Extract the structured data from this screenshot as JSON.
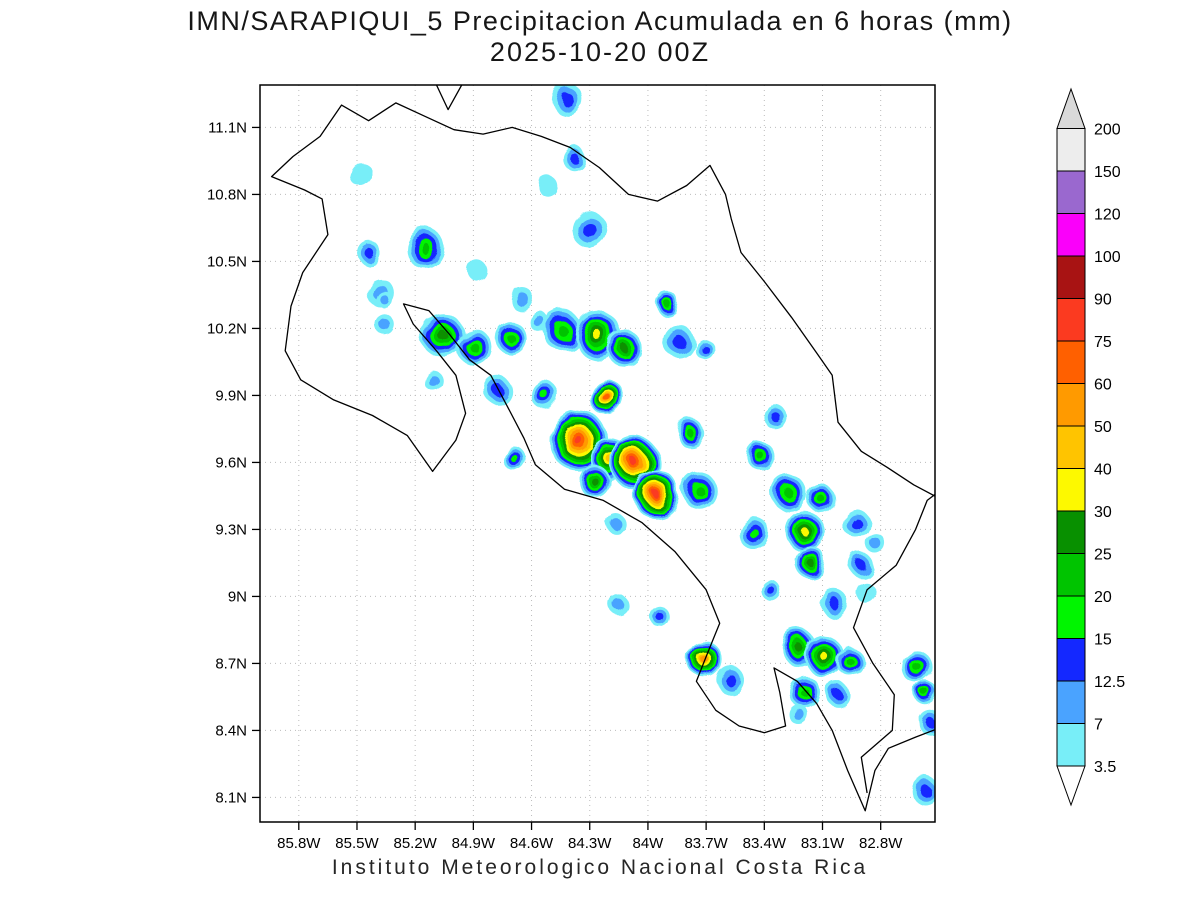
{
  "chart_data": {
    "type": "heatmap",
    "title": "IMN/SARAPIQUI_5 Precipitacion Acumulada en 6 horas (mm)",
    "subtitle": "2025-10-20 00Z",
    "footer": "Instituto Meteorologico Nacional Costa Rica",
    "units": "mm",
    "grid": true,
    "lon_w_range": [
      86.0,
      82.52
    ],
    "lat_range": [
      7.99,
      11.29
    ],
    "x_axis": {
      "ticks": [
        "85.8W",
        "85.5W",
        "85.2W",
        "84.9W",
        "84.6W",
        "84.3W",
        "84W",
        "83.7W",
        "83.4W",
        "83.1W",
        "82.8W"
      ],
      "values": [
        85.8,
        85.5,
        85.2,
        84.9,
        84.6,
        84.3,
        84.0,
        83.7,
        83.4,
        83.1,
        82.8
      ]
    },
    "y_axis": {
      "ticks": [
        "11.1N",
        "10.8N",
        "10.5N",
        "10.2N",
        "9.9N",
        "9.6N",
        "9.3N",
        "9N",
        "8.7N",
        "8.4N",
        "8.1N"
      ],
      "values": [
        11.1,
        10.8,
        10.5,
        10.2,
        9.9,
        9.6,
        9.3,
        9.0,
        8.7,
        8.4,
        8.1
      ]
    },
    "colorbar": {
      "levels": [
        3.5,
        7,
        12.5,
        15,
        20,
        25,
        30,
        40,
        50,
        60,
        75,
        90,
        100,
        120,
        150,
        200
      ],
      "labels": [
        "3.5",
        "7",
        "12.5",
        "15",
        "20",
        "25",
        "30",
        "40",
        "50",
        "60",
        "75",
        "90",
        "100",
        "120",
        "150",
        "200"
      ],
      "colors": [
        "#78eef8",
        "#4aa3ff",
        "#1428ff",
        "#00f500",
        "#00c400",
        "#089000",
        "#fdf900",
        "#ffc400",
        "#ff9a00",
        "#ff6000",
        "#fb3a20",
        "#a81313",
        "#fa00fa",
        "#9a68cf",
        "#ededed"
      ],
      "under_color": "#ffffff",
      "over_color": "#d9d9d9"
    },
    "map_outline": {
      "coastline": [
        [
          85.69,
          11.06
        ],
        [
          85.83,
          10.97
        ],
        [
          85.94,
          10.88
        ],
        [
          85.77,
          10.82
        ],
        [
          85.68,
          10.78
        ],
        [
          85.65,
          10.62
        ],
        [
          85.78,
          10.45
        ],
        [
          85.84,
          10.3
        ],
        [
          85.87,
          10.1
        ],
        [
          85.79,
          9.97
        ],
        [
          85.62,
          9.88
        ],
        [
          85.42,
          9.81
        ],
        [
          85.24,
          9.72
        ],
        [
          85.11,
          9.56
        ],
        [
          84.99,
          9.7
        ],
        [
          84.94,
          9.82
        ],
        [
          84.99,
          9.99
        ],
        [
          85.09,
          10.1
        ],
        [
          85.21,
          10.22
        ],
        [
          85.26,
          10.31
        ],
        [
          85.13,
          10.28
        ],
        [
          85.02,
          10.17
        ],
        [
          84.92,
          10.06
        ],
        [
          84.81,
          9.99
        ],
        [
          84.73,
          9.86
        ],
        [
          84.64,
          9.71
        ],
        [
          84.58,
          9.59
        ],
        [
          84.43,
          9.48
        ],
        [
          84.23,
          9.43
        ],
        [
          84.03,
          9.33
        ],
        [
          83.86,
          9.2
        ],
        [
          83.7,
          9.03
        ],
        [
          83.63,
          8.88
        ],
        [
          83.7,
          8.73
        ],
        [
          83.75,
          8.62
        ],
        [
          83.65,
          8.49
        ],
        [
          83.53,
          8.42
        ],
        [
          83.4,
          8.39
        ],
        [
          83.29,
          8.42
        ],
        [
          83.32,
          8.57
        ],
        [
          83.35,
          8.68
        ],
        [
          83.23,
          8.62
        ],
        [
          83.13,
          8.52
        ],
        [
          83.05,
          8.4
        ],
        [
          82.97,
          8.22
        ],
        [
          82.88,
          8.04
        ],
        [
          82.83,
          8.22
        ],
        [
          82.76,
          8.32
        ],
        [
          82.62,
          8.37
        ],
        [
          82.5,
          8.41
        ],
        [
          82.5,
          9.44
        ],
        [
          82.63,
          9.5
        ],
        [
          82.77,
          9.58
        ],
        [
          82.9,
          9.65
        ],
        [
          83.02,
          9.78
        ],
        [
          83.05,
          9.99
        ],
        [
          83.13,
          10.09
        ],
        [
          83.26,
          10.25
        ],
        [
          83.4,
          10.41
        ],
        [
          83.52,
          10.54
        ],
        [
          83.57,
          10.69
        ],
        [
          83.6,
          10.8
        ],
        [
          83.68,
          10.93
        ],
        [
          83.8,
          10.84
        ],
        [
          83.95,
          10.77
        ],
        [
          84.1,
          10.8
        ],
        [
          84.25,
          10.92
        ],
        [
          84.4,
          11.01
        ],
        [
          84.55,
          11.06
        ],
        [
          84.7,
          11.1
        ],
        [
          84.85,
          11.07
        ],
        [
          85.0,
          11.09
        ],
        [
          85.15,
          11.15
        ],
        [
          85.3,
          11.21
        ],
        [
          85.44,
          11.13
        ],
        [
          85.58,
          11.2
        ]
      ],
      "panama_border": [
        [
          82.87,
          8.12
        ],
        [
          82.9,
          8.28
        ],
        [
          82.74,
          8.4
        ],
        [
          82.73,
          8.56
        ],
        [
          82.84,
          8.7
        ],
        [
          82.94,
          8.86
        ],
        [
          82.87,
          9.03
        ],
        [
          82.72,
          9.14
        ],
        [
          82.62,
          9.3
        ],
        [
          82.56,
          9.43
        ],
        [
          82.5,
          9.47
        ]
      ],
      "lake_nicaragua": [
        [
          85.09,
          11.29
        ],
        [
          85.03,
          11.18
        ],
        [
          84.96,
          11.29
        ]
      ]
    },
    "cells": [
      [
        85.48,
        10.89,
        3.5,
        0.06
      ],
      [
        84.41,
        11.22,
        12.5,
        0.08
      ],
      [
        84.39,
        10.97,
        12.5,
        0.06
      ],
      [
        84.52,
        10.84,
        3.5,
        0.05
      ],
      [
        84.3,
        10.64,
        12.5,
        0.09
      ],
      [
        85.15,
        10.56,
        20,
        0.1
      ],
      [
        85.44,
        10.54,
        12.5,
        0.06
      ],
      [
        85.38,
        10.36,
        7,
        0.07
      ],
      [
        85.36,
        10.22,
        7,
        0.05
      ],
      [
        84.88,
        10.46,
        3.5,
        0.05
      ],
      [
        84.66,
        10.34,
        7,
        0.06
      ],
      [
        84.56,
        10.23,
        7,
        0.05
      ],
      [
        85.06,
        10.17,
        25,
        0.11
      ],
      [
        84.9,
        10.12,
        20,
        0.09
      ],
      [
        84.71,
        10.16,
        20,
        0.08
      ],
      [
        84.44,
        10.19,
        20,
        0.1
      ],
      [
        84.26,
        10.17,
        30,
        0.12
      ],
      [
        84.12,
        10.11,
        25,
        0.09
      ],
      [
        83.9,
        10.31,
        20,
        0.06
      ],
      [
        83.84,
        10.14,
        12.5,
        0.08
      ],
      [
        83.71,
        10.11,
        12.5,
        0.05
      ],
      [
        85.11,
        9.97,
        7,
        0.05
      ],
      [
        85.36,
        10.33,
        7,
        0.04
      ],
      [
        84.77,
        9.92,
        12.5,
        0.07
      ],
      [
        84.53,
        9.9,
        15,
        0.07
      ],
      [
        84.21,
        9.89,
        60,
        0.09
      ],
      [
        83.78,
        9.73,
        20,
        0.07
      ],
      [
        83.35,
        9.81,
        12.5,
        0.06
      ],
      [
        84.36,
        9.7,
        75,
        0.15
      ],
      [
        84.2,
        9.62,
        40,
        0.1
      ],
      [
        84.07,
        9.6,
        75,
        0.13
      ],
      [
        83.96,
        9.46,
        75,
        0.12
      ],
      [
        84.28,
        9.52,
        25,
        0.08
      ],
      [
        83.73,
        9.47,
        20,
        0.09
      ],
      [
        84.17,
        9.33,
        7,
        0.05
      ],
      [
        83.42,
        9.63,
        20,
        0.07
      ],
      [
        83.27,
        9.46,
        20,
        0.09
      ],
      [
        83.11,
        9.44,
        20,
        0.07
      ],
      [
        83.45,
        9.28,
        15,
        0.08
      ],
      [
        83.19,
        9.29,
        30,
        0.1
      ],
      [
        83.16,
        9.15,
        25,
        0.08
      ],
      [
        82.93,
        9.33,
        12.5,
        0.07
      ],
      [
        82.83,
        9.24,
        7,
        0.05
      ],
      [
        82.9,
        9.14,
        12.5,
        0.06
      ],
      [
        83.37,
        9.03,
        12.5,
        0.05
      ],
      [
        83.04,
        8.97,
        12.5,
        0.07
      ],
      [
        82.88,
        9.02,
        3.5,
        0.05
      ],
      [
        83.94,
        8.91,
        12.5,
        0.05
      ],
      [
        84.16,
        8.97,
        7,
        0.05
      ],
      [
        83.71,
        8.72,
        50,
        0.09
      ],
      [
        83.58,
        8.63,
        12.5,
        0.07
      ],
      [
        83.22,
        8.77,
        25,
        0.09
      ],
      [
        83.09,
        8.73,
        30,
        0.1
      ],
      [
        82.96,
        8.71,
        20,
        0.07
      ],
      [
        83.19,
        8.57,
        20,
        0.08
      ],
      [
        83.02,
        8.56,
        12.5,
        0.06
      ],
      [
        82.62,
        8.69,
        20,
        0.08
      ],
      [
        82.57,
        8.57,
        20,
        0.06
      ],
      [
        82.55,
        8.44,
        12.5,
        0.06
      ],
      [
        83.22,
        8.47,
        7,
        0.05
      ],
      [
        82.57,
        8.13,
        12.5,
        0.07
      ],
      [
        84.68,
        9.61,
        15,
        0.06
      ]
    ]
  }
}
